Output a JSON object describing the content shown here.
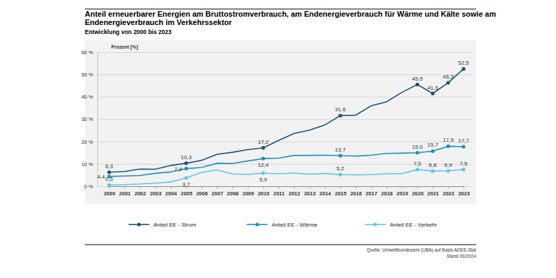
{
  "chart_data": {
    "type": "line",
    "title": "Anteil erneuerbarer Energien am Bruttostromverbrauch, am Endenergieverbrauch für Wärme und Kälte sowie am Endenergieverbrauch im Verkehrssektor",
    "subtitle": "Entwicklung von 2000 bis 2023",
    "y_label": "Prozent [%]",
    "source": "Quelle: Umweltbundesamt (UBA) auf Basis AGEE-Stat",
    "note": "Stand 09/2024",
    "categories": [
      "2000",
      "2001",
      "2002",
      "2003",
      "2004",
      "2005",
      "2006",
      "2007",
      "2008",
      "2009",
      "2010",
      "2011",
      "2012",
      "2013",
      "2014",
      "2015",
      "2016",
      "2017",
      "2018",
      "2019",
      "2020",
      "2021",
      "2022",
      "2023"
    ],
    "series": [
      {
        "name": "Anteil EE - Strom",
        "color": "#1a5276",
        "marker": "circle",
        "values": [
          6.3,
          6.6,
          7.7,
          7.6,
          9.3,
          10.3,
          11.6,
          14.3,
          15.2,
          16.4,
          17.2,
          20.5,
          23.6,
          25.1,
          27.4,
          31.6,
          31.8,
          36.0,
          37.8,
          42.0,
          45.5,
          41.5,
          46.3,
          52.5
        ],
        "value_labels": [
          "6,3",
          null,
          null,
          null,
          null,
          "10,3",
          null,
          null,
          null,
          null,
          "17,2",
          null,
          null,
          null,
          null,
          "31,6",
          null,
          null,
          null,
          null,
          "45,5",
          "41,5",
          "46,3",
          "52,5"
        ]
      },
      {
        "name": "Anteil EE - Wärme",
        "color": "#1f8fbf",
        "marker": "circle",
        "values": [
          4.4,
          4.6,
          4.8,
          5.8,
          6.4,
          7.9,
          8.4,
          10.3,
          10.2,
          11.3,
          12.4,
          12.6,
          13.8,
          13.8,
          13.9,
          13.7,
          13.5,
          13.9,
          14.7,
          14.8,
          15.0,
          15.7,
          17.9,
          17.7
        ],
        "value_labels": [
          "4,4",
          null,
          null,
          null,
          null,
          "7,9",
          null,
          null,
          null,
          null,
          "12,4",
          null,
          null,
          null,
          null,
          "13,7",
          null,
          null,
          null,
          null,
          "15,0",
          "15,7",
          "17,9",
          "17,7"
        ]
      },
      {
        "name": "Anteil EE - Verkehr",
        "color": "#5cc6ea",
        "marker": "circle",
        "values": [
          0.5,
          0.7,
          1.0,
          1.4,
          1.9,
          3.7,
          6.2,
          7.3,
          5.5,
          5.3,
          5.9,
          5.6,
          5.9,
          5.4,
          5.7,
          5.2,
          5.1,
          5.2,
          5.6,
          5.6,
          7.5,
          6.8,
          6.9,
          7.5
        ],
        "value_labels": [
          "0,5",
          null,
          null,
          null,
          null,
          "3,7",
          null,
          null,
          null,
          null,
          "5,9",
          null,
          null,
          null,
          null,
          "5,2",
          null,
          null,
          null,
          null,
          "7,5",
          "6,8",
          "6,9",
          "7,5"
        ]
      }
    ],
    "ylim": [
      0,
      60
    ],
    "yticks": [
      {
        "value": 0,
        "label": "0 %"
      },
      {
        "value": 10,
        "label": "10 %"
      },
      {
        "value": 20,
        "label": "20 %"
      },
      {
        "value": 30,
        "label": "30 %"
      },
      {
        "value": 40,
        "label": "40 %"
      },
      {
        "value": 50,
        "label": "50 %"
      },
      {
        "value": 60,
        "label": "60 %"
      }
    ],
    "grid": true,
    "legend": "bottom",
    "data_labels": true
  }
}
